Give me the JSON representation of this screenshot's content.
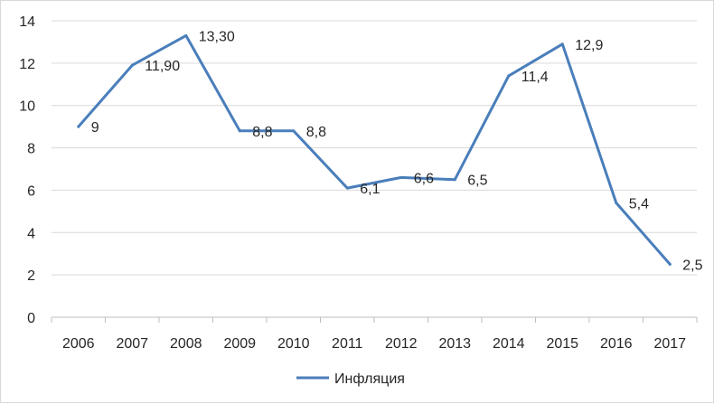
{
  "chart_data": {
    "type": "line",
    "categories": [
      "2006",
      "2007",
      "2008",
      "2009",
      "2010",
      "2011",
      "2012",
      "2013",
      "2014",
      "2015",
      "2016",
      "2017"
    ],
    "series": [
      {
        "name": "Инфляция",
        "values": [
          9,
          11.9,
          13.3,
          8.8,
          8.8,
          6.1,
          6.6,
          6.5,
          11.4,
          12.9,
          5.4,
          2.5
        ],
        "data_labels": [
          "9",
          "11,90",
          "13,30",
          "8,8",
          "8,8",
          "6,1",
          "6,6",
          "6,5",
          "11,4",
          "12,9",
          "5,4",
          "2,5"
        ],
        "color": "#4a7ebb"
      }
    ],
    "y_ticks": [
      "0",
      "2",
      "4",
      "6",
      "8",
      "10",
      "12",
      "14"
    ],
    "ylim": [
      0,
      14
    ],
    "grid": true,
    "legend": "bottom",
    "title": "",
    "xlabel": "",
    "ylabel": ""
  }
}
